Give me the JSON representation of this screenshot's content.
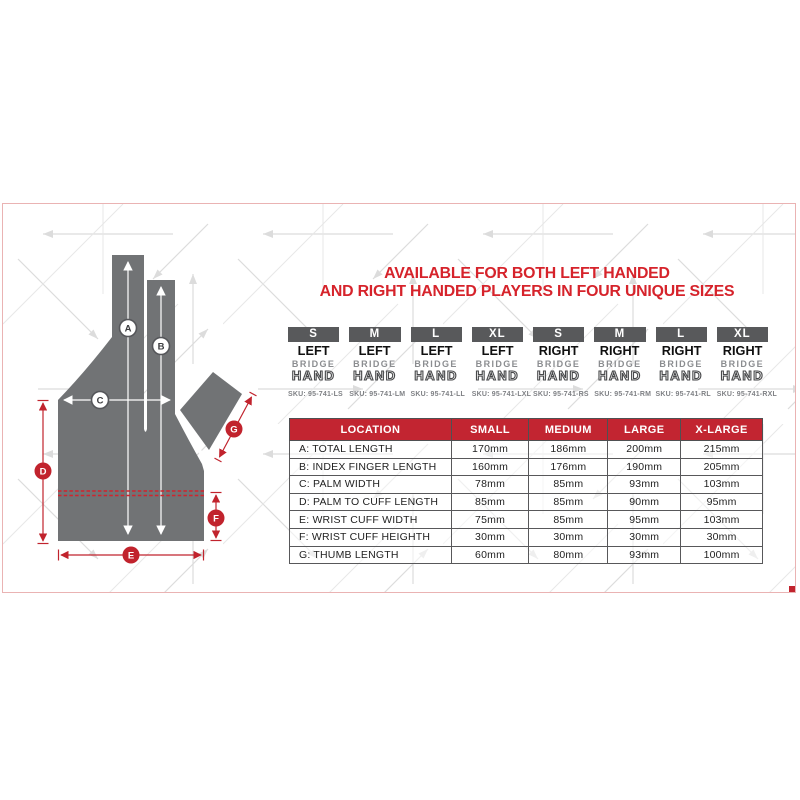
{
  "title": {
    "line1": "AVAILABLE FOR BOTH LEFT HANDED",
    "line2": "AND RIGHT HANDED PLAYERS IN FOUR UNIQUE SIZES"
  },
  "size_boxes": [
    {
      "size": "S",
      "side": "LEFT",
      "bridge": "BRIDGE",
      "hand": "HAND",
      "sku": "SKU: 95-741-LS"
    },
    {
      "size": "M",
      "side": "LEFT",
      "bridge": "BRIDGE",
      "hand": "HAND",
      "sku": "SKU: 95-741-LM"
    },
    {
      "size": "L",
      "side": "LEFT",
      "bridge": "BRIDGE",
      "hand": "HAND",
      "sku": "SKU: 95-741-LL"
    },
    {
      "size": "XL",
      "side": "LEFT",
      "bridge": "BRIDGE",
      "hand": "HAND",
      "sku": "SKU: 95-741-LXL"
    },
    {
      "size": "S",
      "side": "RIGHT",
      "bridge": "BRIDGE",
      "hand": "HAND",
      "sku": "SKU: 95-741-RS"
    },
    {
      "size": "M",
      "side": "RIGHT",
      "bridge": "BRIDGE",
      "hand": "HAND",
      "sku": "SKU: 95-741-RM"
    },
    {
      "size": "L",
      "side": "RIGHT",
      "bridge": "BRIDGE",
      "hand": "HAND",
      "sku": "SKU: 95-741-RL"
    },
    {
      "size": "XL",
      "side": "RIGHT",
      "bridge": "BRIDGE",
      "hand": "HAND",
      "sku": "SKU: 95-741-RXL"
    }
  ],
  "table": {
    "headers": [
      "LOCATION",
      "SMALL",
      "MEDIUM",
      "LARGE",
      "X-LARGE"
    ],
    "rows": [
      {
        "location": "A:  TOTAL LENGTH",
        "values": [
          "170mm",
          "186mm",
          "200mm",
          "215mm"
        ]
      },
      {
        "location": "B:  INDEX FINGER LENGTH",
        "values": [
          "160mm",
          "176mm",
          "190mm",
          "205mm"
        ]
      },
      {
        "location": "C:  PALM WIDTH",
        "values": [
          "78mm",
          "85mm",
          "93mm",
          "103mm"
        ]
      },
      {
        "location": "D:  PALM TO CUFF LENGTH",
        "values": [
          "85mm",
          "85mm",
          "90mm",
          "95mm"
        ]
      },
      {
        "location": "E:  WRIST CUFF WIDTH",
        "values": [
          "75mm",
          "85mm",
          "95mm",
          "103mm"
        ]
      },
      {
        "location": "F:  WRIST CUFF HEIGHTH",
        "values": [
          "30mm",
          "30mm",
          "30mm",
          "30mm"
        ]
      },
      {
        "location": "G:  THUMB LENGTH",
        "values": [
          "60mm",
          "80mm",
          "93mm",
          "100mm"
        ]
      }
    ]
  },
  "diagram": {
    "markers": [
      {
        "letter": "A"
      },
      {
        "letter": "B"
      },
      {
        "letter": "C"
      },
      {
        "letter": "D"
      },
      {
        "letter": "E"
      },
      {
        "letter": "F"
      },
      {
        "letter": "G"
      }
    ]
  },
  "colors": {
    "title_red": "#d6232b",
    "table_header_red": "#c22531",
    "dimension_red": "#c1232d",
    "glove_gray": "#717375",
    "tab_gray": "#58595b",
    "border_pink": "#eab3b3"
  }
}
